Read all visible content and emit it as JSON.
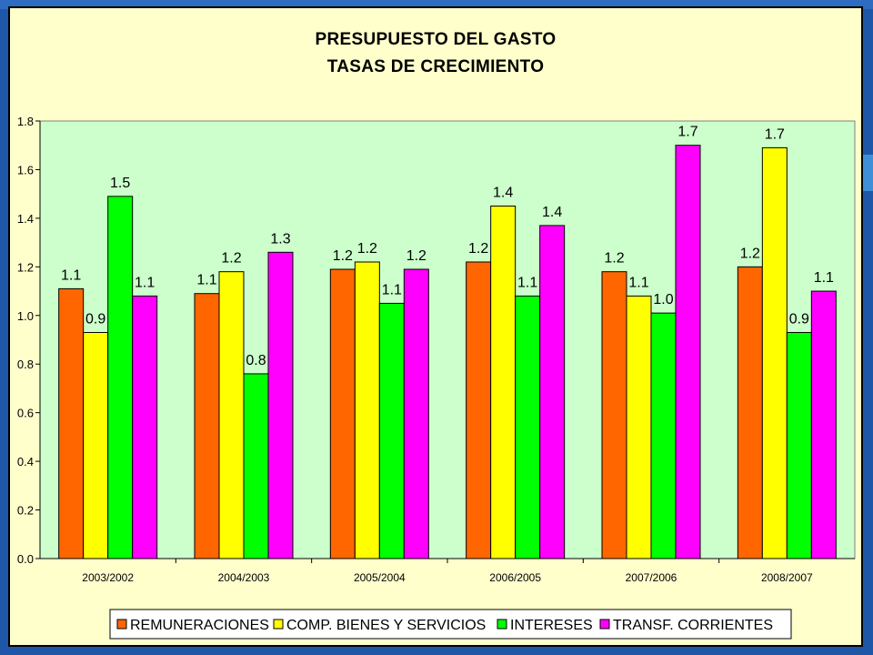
{
  "colors": {
    "slide_bg": "#1f57a8",
    "chart_bg": "#ffffcc",
    "plot_bg": "#ccffcc"
  },
  "chart_data": {
    "type": "bar",
    "title_line1": "PRESUPUESTO DEL GASTO",
    "title_line2": "TASAS DE CRECIMIENTO",
    "categories": [
      "2003/2002",
      "2004/2003",
      "2005/2004",
      "2006/2005",
      "2007/2006",
      "2008/2007"
    ],
    "ylim": [
      0,
      1.8
    ],
    "yticks": [
      0,
      0.2,
      0.4,
      0.6,
      0.8,
      1.0,
      1.2,
      1.4,
      1.6,
      1.8
    ],
    "ytick_labels": [
      "0.0",
      "0.2",
      "0.4",
      "0.6",
      "0.8",
      "1.0",
      "1.2",
      "1.4",
      "1.6",
      "1.8"
    ],
    "grid": false,
    "legend_position": "bottom",
    "series": [
      {
        "name": "REMUNERACIONES",
        "color": "#ff6600",
        "values": [
          1.11,
          1.09,
          1.19,
          1.22,
          1.18,
          1.2
        ],
        "labels": [
          "1.1",
          "1.1",
          "1.2",
          "1.2",
          "1.2",
          "1.2"
        ]
      },
      {
        "name": "COMP. BIENES Y SERVICIOS",
        "color": "#ffff00",
        "values": [
          0.93,
          1.18,
          1.22,
          1.45,
          1.08,
          1.69
        ],
        "labels": [
          "0.9",
          "1.2",
          "1.2",
          "1.4",
          "1.1",
          "1.7"
        ]
      },
      {
        "name": "INTERESES",
        "color": "#00ff00",
        "values": [
          1.49,
          0.76,
          1.05,
          1.08,
          1.01,
          0.93
        ],
        "labels": [
          "1.5",
          "0.8",
          "1.1",
          "1.1",
          "1.0",
          "0.9"
        ]
      },
      {
        "name": "TRANSF. CORRIENTES",
        "color": "#ff00ff",
        "values": [
          1.08,
          1.26,
          1.19,
          1.37,
          1.7,
          1.1
        ],
        "labels": [
          "1.1",
          "1.3",
          "1.2",
          "1.4",
          "1.7",
          "1.1"
        ]
      }
    ]
  }
}
